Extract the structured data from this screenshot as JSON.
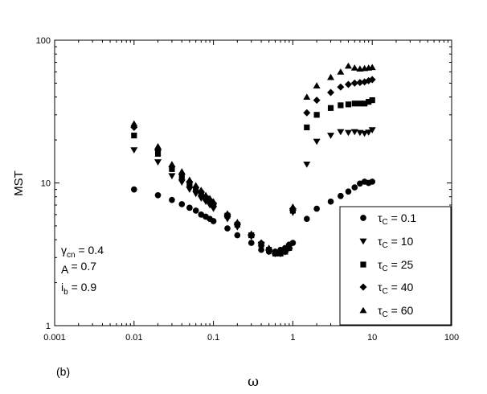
{
  "chart_data": {
    "type": "scatter",
    "title": "",
    "xlabel": "ω",
    "ylabel": "MST",
    "xscale": "log",
    "yscale": "log",
    "xlim": [
      0.001,
      100
    ],
    "ylim": [
      1,
      100
    ],
    "x_ticks": [
      "0.001",
      "0.01",
      "0.1",
      "1",
      "10",
      "100"
    ],
    "y_ticks": [
      "1",
      "10",
      "100"
    ],
    "panel_label": "(b)",
    "grid": false,
    "legend_position": "bottom-right",
    "annotations": [
      {
        "base": "γ",
        "sub": "cn",
        "rest": " = 0.4"
      },
      {
        "base": "A",
        "sub": "",
        "rest": " = 0.7"
      },
      {
        "base": "i",
        "sub": "b",
        "rest": " = 0.9"
      }
    ],
    "series": [
      {
        "name": "τc = 0.1",
        "label_base": "τ",
        "label_sub": "C",
        "label_rest": " = 0.1",
        "marker": "circle",
        "x": [
          0.01,
          0.02,
          0.03,
          0.04,
          0.05,
          0.06,
          0.07,
          0.08,
          0.09,
          0.1,
          0.15,
          0.2,
          0.3,
          0.4,
          0.5,
          0.6,
          0.7,
          0.8,
          0.9,
          1,
          1.5,
          2,
          3,
          4,
          5,
          6,
          7,
          8,
          9,
          10
        ],
        "y": [
          9.0,
          8.2,
          7.6,
          7.1,
          6.7,
          6.4,
          6.0,
          5.8,
          5.6,
          5.4,
          4.8,
          4.3,
          3.8,
          3.4,
          3.3,
          3.3,
          3.4,
          3.5,
          3.7,
          3.8,
          5.6,
          6.6,
          7.4,
          8.1,
          8.7,
          9.3,
          9.9,
          10.2,
          10.0,
          10.2
        ]
      },
      {
        "name": "τc = 10",
        "label_base": "τ",
        "label_sub": "C",
        "label_rest": " = 10",
        "marker": "triangle-down",
        "x": [
          0.01,
          0.02,
          0.03,
          0.04,
          0.05,
          0.06,
          0.07,
          0.08,
          0.09,
          0.1,
          0.15,
          0.2,
          0.3,
          0.4,
          0.5,
          0.6,
          0.7,
          0.8,
          0.9,
          1,
          1.5,
          2,
          3,
          4,
          5,
          6,
          7,
          8,
          9,
          10
        ],
        "y": [
          17.0,
          14.0,
          11.2,
          10.1,
          9.0,
          8.4,
          7.8,
          7.4,
          7.0,
          6.6,
          5.6,
          4.9,
          4.2,
          3.7,
          3.3,
          3.2,
          3.2,
          3.3,
          3.6,
          6.2,
          13.5,
          19.5,
          21.5,
          22.8,
          22.5,
          22.8,
          22.5,
          22.2,
          22.6,
          23.5
        ]
      },
      {
        "name": "τc = 25",
        "label_base": "τ",
        "label_sub": "C",
        "label_rest": " = 25",
        "marker": "square",
        "x": [
          0.01,
          0.02,
          0.03,
          0.04,
          0.05,
          0.06,
          0.07,
          0.08,
          0.09,
          0.1,
          0.15,
          0.2,
          0.3,
          0.4,
          0.5,
          0.6,
          0.7,
          0.8,
          0.9,
          1,
          1.5,
          2,
          3,
          4,
          5,
          6,
          7,
          8,
          9,
          10
        ],
        "y": [
          21.5,
          16.0,
          12.5,
          11.0,
          9.8,
          9.0,
          8.4,
          7.8,
          7.4,
          7.0,
          5.9,
          5.1,
          4.3,
          3.7,
          3.4,
          3.2,
          3.2,
          3.3,
          3.5,
          6.4,
          24.5,
          30.0,
          33.5,
          35.0,
          35.5,
          36.0,
          36.0,
          36.0,
          37.0,
          38.0
        ]
      },
      {
        "name": "τc = 40",
        "label_base": "τ",
        "label_sub": "C",
        "label_rest": " = 40",
        "marker": "diamond",
        "x": [
          0.01,
          0.02,
          0.03,
          0.04,
          0.05,
          0.06,
          0.07,
          0.08,
          0.09,
          0.1,
          0.15,
          0.2,
          0.3,
          0.4,
          0.5,
          0.6,
          0.7,
          0.8,
          0.9,
          1,
          1.5,
          2,
          3,
          4,
          5,
          6,
          7,
          8,
          9,
          10
        ],
        "y": [
          24.5,
          17.0,
          13.0,
          11.5,
          10.2,
          9.3,
          8.7,
          8.0,
          7.6,
          7.2,
          6.0,
          5.2,
          4.3,
          3.8,
          3.4,
          3.2,
          3.2,
          3.3,
          3.5,
          6.6,
          31.0,
          38.0,
          43.0,
          47.0,
          49.0,
          50.0,
          50.5,
          51.0,
          52.0,
          53.0
        ]
      },
      {
        "name": "τc = 60",
        "label_base": "τ",
        "label_sub": "C",
        "label_rest": " = 60",
        "marker": "triangle-up",
        "x": [
          0.01,
          0.02,
          0.03,
          0.04,
          0.05,
          0.06,
          0.07,
          0.08,
          0.09,
          0.1,
          0.15,
          0.2,
          0.3,
          0.4,
          0.5,
          0.6,
          0.7,
          0.8,
          0.9,
          1,
          1.5,
          2,
          3,
          4,
          5,
          6,
          7,
          8,
          9,
          10
        ],
        "y": [
          26.0,
          18.0,
          13.5,
          12.0,
          10.5,
          9.6,
          8.9,
          8.2,
          7.8,
          7.4,
          6.1,
          5.3,
          4.4,
          3.8,
          3.5,
          3.3,
          3.3,
          3.4,
          3.6,
          6.8,
          40.0,
          48.0,
          55.0,
          60.0,
          66.0,
          64.0,
          63.0,
          63.5,
          64.0,
          64.5
        ]
      }
    ]
  }
}
